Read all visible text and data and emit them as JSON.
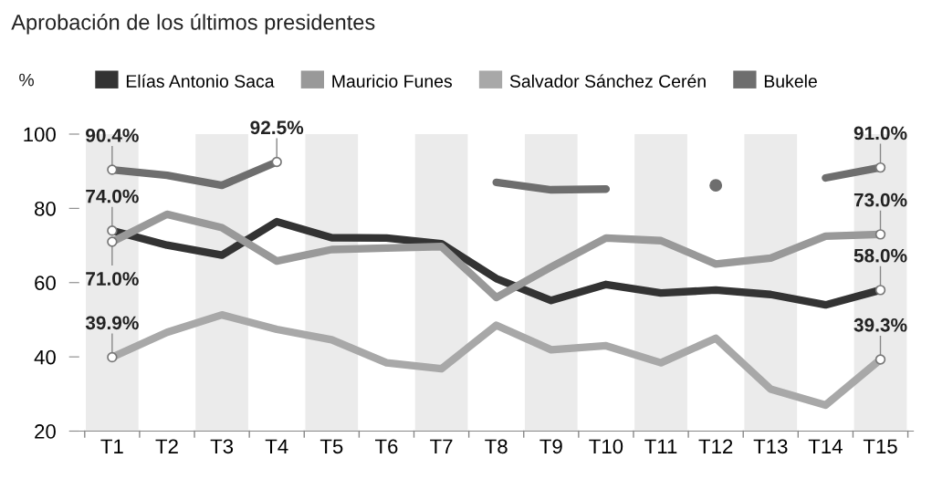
{
  "chart_data": {
    "type": "line",
    "title": "Aprobación de los últimos presidentes",
    "ylabel": "%",
    "categories": [
      "T1",
      "T2",
      "T3",
      "T4",
      "T5",
      "T6",
      "T7",
      "T8",
      "T9",
      "T10",
      "T11",
      "T12",
      "T13",
      "T14",
      "T15"
    ],
    "series": [
      {
        "name": "Elías Antonio Saca",
        "color": "#333333",
        "values": [
          74.0,
          70.1,
          67.4,
          76.4,
          72.1,
          72,
          70.5,
          61.1,
          55.2,
          59.5,
          57.2,
          58,
          56.8,
          54,
          58.0
        ],
        "value_labels": [
          "74.0%",
          null,
          null,
          null,
          null,
          null,
          null,
          null,
          null,
          null,
          null,
          null,
          null,
          null,
          "58.0%"
        ]
      },
      {
        "name": "Mauricio Funes",
        "color": "#999999",
        "values": [
          71.0,
          78.4,
          74.8,
          65.8,
          68.9,
          69.3,
          69.7,
          56,
          64.2,
          72,
          71.3,
          65,
          66.6,
          72.5,
          73.0
        ],
        "value_labels": [
          "71.0%",
          null,
          null,
          null,
          null,
          null,
          null,
          null,
          null,
          null,
          null,
          null,
          null,
          null,
          "73.0%"
        ]
      },
      {
        "name": "Salvador Sánchez Cerén",
        "color": "#a8a8a8",
        "values": [
          39.9,
          46.6,
          51.3,
          47.4,
          44.6,
          38.4,
          36.8,
          48.5,
          41.9,
          43,
          38.4,
          45,
          31.3,
          27,
          39.3
        ],
        "value_labels": [
          "39.9%",
          null,
          null,
          null,
          null,
          null,
          null,
          null,
          null,
          null,
          null,
          null,
          null,
          null,
          "39.3%"
        ]
      },
      {
        "name": "Bukele",
        "color": "#6e6e6e",
        "values": [
          90.4,
          88.9,
          86.2,
          92.5,
          null,
          null,
          null,
          87,
          85,
          85.2,
          null,
          86.2,
          null,
          88.2,
          91.0
        ],
        "value_labels": [
          "90.4%",
          null,
          null,
          "92.5%",
          null,
          null,
          null,
          null,
          null,
          null,
          null,
          null,
          null,
          null,
          "91.0%"
        ]
      }
    ],
    "bands": [
      {
        "axis": "x",
        "from": "T1",
        "to": "T1",
        "color": "#ebebeb"
      },
      {
        "axis": "x",
        "from": "T3",
        "to": "T3",
        "color": "#ebebeb"
      },
      {
        "axis": "x",
        "from": "T5",
        "to": "T5",
        "color": "#ebebeb"
      },
      {
        "axis": "x",
        "from": "T7",
        "to": "T7",
        "color": "#ebebeb"
      },
      {
        "axis": "x",
        "from": "T9",
        "to": "T9",
        "color": "#ebebeb"
      },
      {
        "axis": "x",
        "from": "T11",
        "to": "T11",
        "color": "#ebebeb"
      },
      {
        "axis": "x",
        "from": "T13",
        "to": "T13",
        "color": "#ebebeb"
      },
      {
        "axis": "x",
        "from": "T15",
        "to": "T15",
        "color": "#ebebeb"
      }
    ],
    "ylim": [
      20,
      100
    ],
    "yticks": [
      20,
      40,
      60,
      80,
      100
    ],
    "grid": false,
    "legend": "top",
    "marker": "none",
    "line_style": "solid"
  }
}
